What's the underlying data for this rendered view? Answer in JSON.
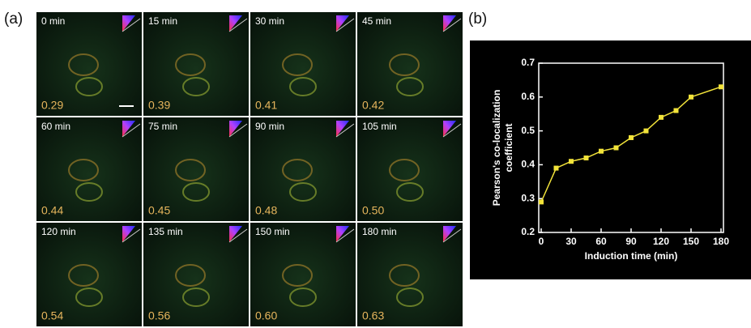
{
  "panel_a": {
    "label": "(a)",
    "tiles": [
      {
        "time": "0 min",
        "coefficient": "0.29"
      },
      {
        "time": "15 min",
        "coefficient": "0.39"
      },
      {
        "time": "30 min",
        "coefficient": "0.41"
      },
      {
        "time": "45 min",
        "coefficient": "0.42"
      },
      {
        "time": "60 min",
        "coefficient": "0.44"
      },
      {
        "time": "75 min",
        "coefficient": "0.45"
      },
      {
        "time": "90 min",
        "coefficient": "0.48"
      },
      {
        "time": "105 min",
        "coefficient": "0.50"
      },
      {
        "time": "120 min",
        "coefficient": "0.54"
      },
      {
        "time": "135 min",
        "coefficient": "0.56"
      },
      {
        "time": "150 min",
        "coefficient": "0.60"
      },
      {
        "time": "180 min",
        "coefficient": "0.63"
      }
    ]
  },
  "panel_b": {
    "label": "(b)"
  },
  "chart_data": {
    "type": "line",
    "xlabel": "Induction time (min)",
    "ylabel": [
      "Pearson's co-localization",
      "coefficient"
    ],
    "x": [
      0,
      15,
      30,
      45,
      60,
      75,
      90,
      105,
      120,
      135,
      150,
      180
    ],
    "values": [
      0.29,
      0.39,
      0.41,
      0.42,
      0.44,
      0.45,
      0.48,
      0.5,
      0.54,
      0.56,
      0.6,
      0.63
    ],
    "color": "#f2e33a",
    "xlim": [
      0,
      180
    ],
    "ylim": [
      0.2,
      0.7
    ],
    "xticks": [
      0,
      30,
      60,
      90,
      120,
      150,
      180
    ],
    "yticks": [
      0.2,
      0.3,
      0.4,
      0.5,
      0.6,
      0.7
    ]
  }
}
